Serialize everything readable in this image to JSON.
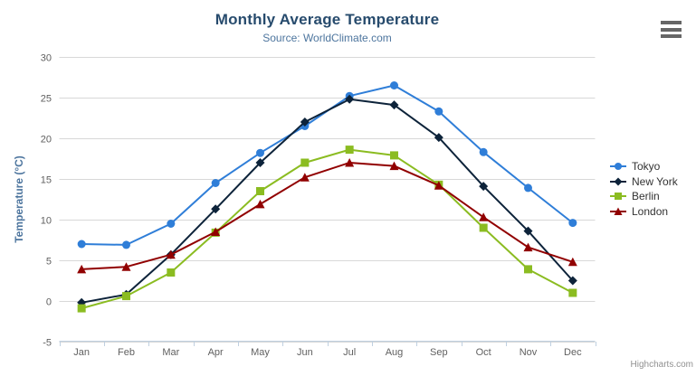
{
  "chart_data": {
    "type": "line",
    "title": "Monthly Average Temperature",
    "subtitle": "Source: WorldClimate.com",
    "credits": "Highcharts.com",
    "categories": [
      "Jan",
      "Feb",
      "Mar",
      "Apr",
      "May",
      "Jun",
      "Jul",
      "Aug",
      "Sep",
      "Oct",
      "Nov",
      "Dec"
    ],
    "xlabel": "",
    "ylabel": "Temperature (°C)",
    "ylim": [
      -5,
      30
    ],
    "ytick_interval": 5,
    "yticks": [
      -5,
      0,
      5,
      10,
      15,
      20,
      25,
      30
    ],
    "grid": "horizontal",
    "legend_position": "right",
    "series": [
      {
        "name": "Tokyo",
        "color": "#2f7ed8",
        "marker": "circle",
        "values": [
          7.0,
          6.9,
          9.5,
          14.5,
          18.2,
          21.5,
          25.2,
          26.5,
          23.3,
          18.3,
          13.9,
          9.6
        ]
      },
      {
        "name": "New York",
        "color": "#0d233a",
        "marker": "diamond",
        "values": [
          -0.2,
          0.8,
          5.7,
          11.3,
          17.0,
          22.0,
          24.8,
          24.1,
          20.1,
          14.1,
          8.6,
          2.5
        ]
      },
      {
        "name": "Berlin",
        "color": "#8bbc21",
        "marker": "square",
        "values": [
          -0.9,
          0.6,
          3.5,
          8.4,
          13.5,
          17.0,
          18.6,
          17.9,
          14.3,
          9.0,
          3.9,
          1.0
        ]
      },
      {
        "name": "London",
        "color": "#910000",
        "marker": "triangle",
        "values": [
          3.9,
          4.2,
          5.7,
          8.5,
          11.9,
          15.2,
          17.0,
          16.6,
          14.2,
          10.3,
          6.6,
          4.8
        ]
      }
    ]
  },
  "colors": {
    "title": "#274b6d",
    "subtitle": "#4d759e",
    "axis_title": "#4d759e",
    "axis_label": "#606060",
    "grid_line": "#d8d8d8",
    "axis_line": "#c0d0e0",
    "legend_text": "#333333",
    "credits_text": "#909090",
    "menu_icon": "#666666"
  }
}
